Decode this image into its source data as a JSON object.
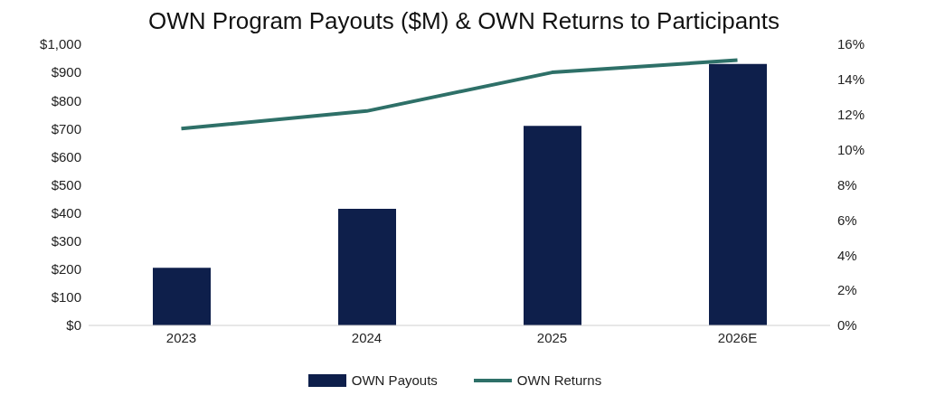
{
  "chart_data": {
    "type": "bar",
    "title": "OWN Program Payouts ($M) & OWN Returns to Participants",
    "categories": [
      "2023",
      "2024",
      "2025",
      "2026E"
    ],
    "series": [
      {
        "name": "OWN Payouts",
        "color": "#0e1f4b",
        "values": [
          205,
          415,
          710,
          930
        ]
      },
      {
        "name": "OWN Returns",
        "type": "line",
        "axis": "y2",
        "color": "#2e7068",
        "values": [
          11.2,
          12.2,
          14.4,
          15.1
        ]
      }
    ],
    "ylim": [
      0,
      1000
    ],
    "yticks": [
      {
        "value": 0,
        "label": "$0"
      },
      {
        "value": 100,
        "label": "$100"
      },
      {
        "value": 200,
        "label": "$200"
      },
      {
        "value": 300,
        "label": "$300"
      },
      {
        "value": 400,
        "label": "$400"
      },
      {
        "value": 500,
        "label": "$500"
      },
      {
        "value": 600,
        "label": "$600"
      },
      {
        "value": 700,
        "label": "$700"
      },
      {
        "value": 800,
        "label": "$800"
      },
      {
        "value": 900,
        "label": "$900"
      },
      {
        "value": 1000,
        "label": "$1,000"
      }
    ],
    "y2lim": [
      0,
      16
    ],
    "y2ticks": [
      {
        "value": 0,
        "label": "0%"
      },
      {
        "value": 2,
        "label": "2%"
      },
      {
        "value": 4,
        "label": "4%"
      },
      {
        "value": 6,
        "label": "6%"
      },
      {
        "value": 8,
        "label": "8%"
      },
      {
        "value": 10,
        "label": "10%"
      },
      {
        "value": 12,
        "label": "12%"
      },
      {
        "value": 14,
        "label": "14%"
      },
      {
        "value": 16,
        "label": "16%"
      }
    ],
    "grid": false,
    "legend": "bottom",
    "marker": "none",
    "line_style": "solid"
  }
}
